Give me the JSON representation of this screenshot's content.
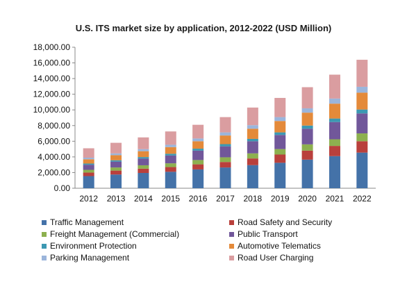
{
  "chart_data": {
    "type": "bar",
    "stacked": true,
    "title": "U.S. ITS market size by application, 2012-2022 (USD Million)",
    "categories": [
      "2012",
      "2013",
      "2014",
      "2015",
      "2016",
      "2017",
      "2018",
      "2019",
      "2020",
      "2021",
      "2022"
    ],
    "ylim": [
      0,
      18000
    ],
    "ytick_labels": [
      "0.00",
      "2,000.00",
      "4,000.00",
      "6,000.00",
      "8,000.00",
      "10,000.00",
      "12,000.00",
      "14,000.00",
      "16,000.00",
      "18,000.00"
    ],
    "grid": false,
    "legend_position": "bottom",
    "series": [
      {
        "name": "Traffic Management",
        "color": "#4472A8",
        "values": [
          1550,
          1750,
          1950,
          2100,
          2400,
          2650,
          2950,
          3250,
          3650,
          4100,
          4550
        ]
      },
      {
        "name": "Road Safety and Security",
        "color": "#B9403C",
        "values": [
          450,
          500,
          550,
          600,
          650,
          700,
          850,
          1050,
          1150,
          1300,
          1450
        ]
      },
      {
        "name": "Freight Management (Commercial)",
        "color": "#8DB04F",
        "values": [
          350,
          400,
          430,
          480,
          550,
          600,
          650,
          700,
          800,
          850,
          1000
        ]
      },
      {
        "name": "Public Transport",
        "color": "#71579A",
        "values": [
          650,
          750,
          850,
          1000,
          1200,
          1400,
          1550,
          1800,
          2000,
          2200,
          2550
        ]
      },
      {
        "name": "Environment Protection",
        "color": "#3C98B2",
        "values": [
          150,
          170,
          200,
          220,
          250,
          280,
          300,
          330,
          400,
          450,
          500
        ]
      },
      {
        "name": "Automotive Telematics",
        "color": "#E48A3A",
        "values": [
          550,
          650,
          750,
          850,
          950,
          1100,
          1300,
          1450,
          1650,
          1900,
          2150
        ]
      },
      {
        "name": "Parking Management",
        "color": "#9BB5DB",
        "values": [
          200,
          230,
          260,
          300,
          350,
          400,
          450,
          500,
          550,
          650,
          750
        ]
      },
      {
        "name": "Road User Charging",
        "color": "#DA9DA0",
        "values": [
          1200,
          1350,
          1500,
          1700,
          1750,
          1950,
          2250,
          2450,
          2700,
          3050,
          3450
        ]
      }
    ]
  }
}
